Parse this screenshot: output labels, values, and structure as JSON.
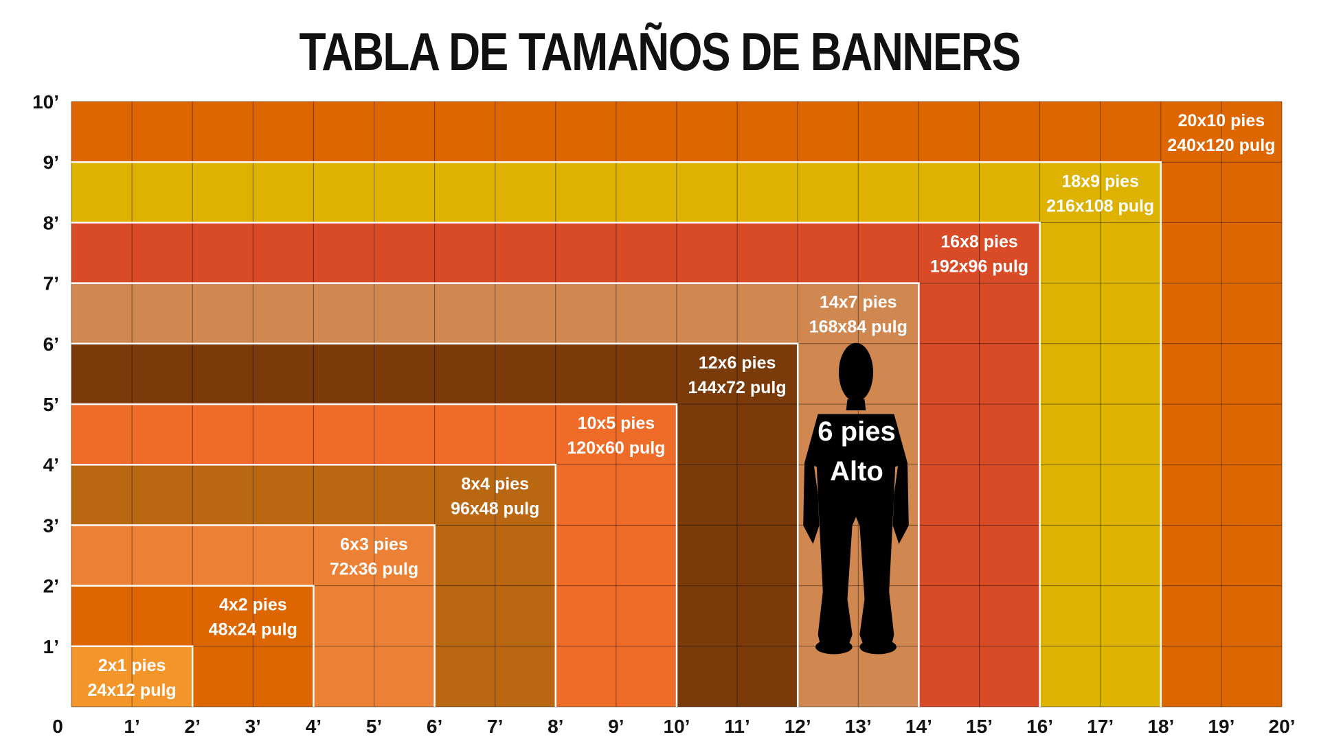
{
  "title": "TABLA DE TAMAÑOS DE BANNERS",
  "chart_data": {
    "type": "diagram",
    "x_unit": "pies",
    "y_unit": "pies",
    "xlim": [
      0,
      20
    ],
    "ylim": [
      0,
      10
    ],
    "x_tick_labels": [
      "0",
      "1’",
      "2’",
      "3’",
      "4’",
      "5’",
      "6’",
      "7’",
      "8’",
      "9’",
      "10’",
      "11’",
      "12’",
      "13’",
      "14’",
      "15’",
      "16’",
      "17’",
      "18’",
      "19’",
      "20’"
    ],
    "y_tick_labels": [
      "1’",
      "2’",
      "3’",
      "4’",
      "5’",
      "6’",
      "7’",
      "8’",
      "9’",
      "10’"
    ],
    "grid": true,
    "banners": [
      {
        "width_ft": 20,
        "height_ft": 10,
        "label_ft": "20x10 pies",
        "label_in": "240x120 pulg",
        "color": "#DE6600"
      },
      {
        "width_ft": 18,
        "height_ft": 9,
        "label_ft": "18x9 pies",
        "label_in": "216x108 pulg",
        "color": "#DDB200"
      },
      {
        "width_ft": 16,
        "height_ft": 8,
        "label_ft": "16x8 pies",
        "label_in": "192x96 pulg",
        "color": "#D94A26"
      },
      {
        "width_ft": 14,
        "height_ft": 7,
        "label_ft": "14x7 pies",
        "label_in": "168x84 pulg",
        "color": "#D08850"
      },
      {
        "width_ft": 12,
        "height_ft": 6,
        "label_ft": "12x6 pies",
        "label_in": "144x72 pulg",
        "color": "#7A3A0A"
      },
      {
        "width_ft": 10,
        "height_ft": 5,
        "label_ft": "10x5 pies",
        "label_in": "120x60 pulg",
        "color": "#EE6B28"
      },
      {
        "width_ft": 8,
        "height_ft": 4,
        "label_ft": "8x4 pies",
        "label_in": "96x48 pulg",
        "color": "#BA6712"
      },
      {
        "width_ft": 6,
        "height_ft": 3,
        "label_ft": "6x3 pies",
        "label_in": "72x36 pulg",
        "color": "#EC8034"
      },
      {
        "width_ft": 4,
        "height_ft": 2,
        "label_ft": "4x2 pies",
        "label_in": "48x24 pulg",
        "color": "#DE6600"
      },
      {
        "width_ft": 2,
        "height_ft": 1,
        "label_ft": "2x1 pies",
        "label_in": "24x12 pulg",
        "color": "#F4952A"
      }
    ],
    "human": {
      "height_ft": 6,
      "line1": "6 pies",
      "line2": "Alto",
      "color": "#000000"
    }
  }
}
